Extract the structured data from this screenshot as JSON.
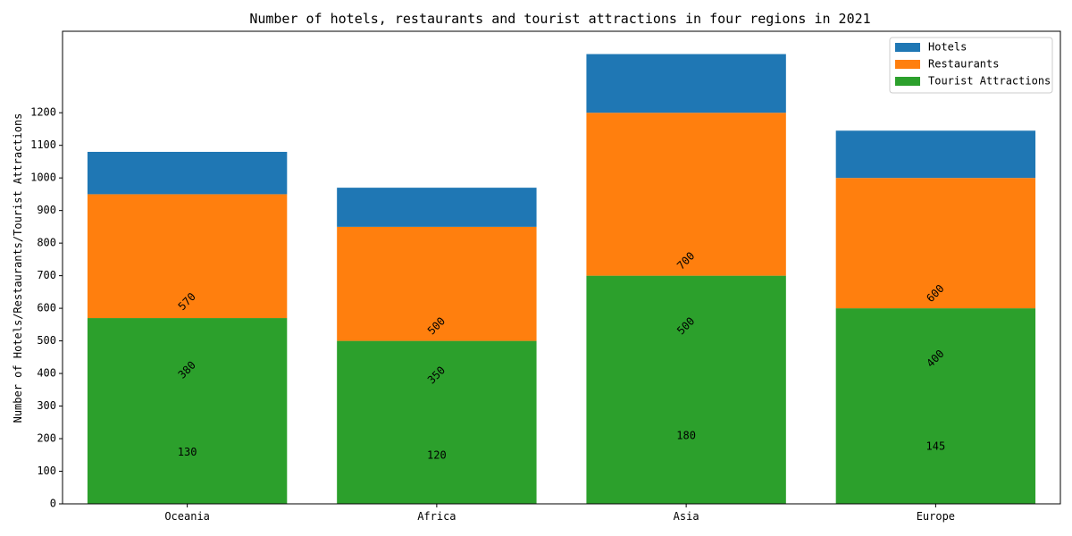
{
  "chart_data": {
    "type": "bar",
    "stacked": true,
    "title": "Number of hotels, restaurants and tourist attractions in four regions in 2021",
    "xlabel": "",
    "ylabel": "Number of Hotels/Restaurants/Tourist Attractions",
    "categories": [
      "Oceania",
      "Africa",
      "Asia",
      "Europe"
    ],
    "ylim": [
      0,
      1450
    ],
    "yticks": [
      0,
      100,
      200,
      300,
      400,
      500,
      600,
      700,
      800,
      900,
      1000,
      1100,
      1200
    ],
    "ytick_labels": [
      "0",
      "100",
      "200",
      "300",
      "400",
      "500",
      "600",
      "700",
      "800",
      "900",
      "1000",
      "1100",
      "1200"
    ],
    "legend_position": "top-right",
    "series": [
      {
        "name": "Tourist Attractions",
        "color": "#2ca02c",
        "values": [
          570,
          500,
          700,
          600
        ]
      },
      {
        "name": "Restaurants",
        "color": "#ff7f0e",
        "values": [
          380,
          350,
          500,
          400
        ]
      },
      {
        "name": "Hotels",
        "color": "#1f77b4",
        "values": [
          130,
          120,
          180,
          145
        ]
      }
    ],
    "legend_order": [
      "Hotels",
      "Restaurants",
      "Tourist Attractions"
    ],
    "annotations": [
      {
        "text": "130",
        "category": "Oceania",
        "y": 158,
        "rotation": 0
      },
      {
        "text": "380",
        "category": "Oceania",
        "y": 410,
        "rotation": -45
      },
      {
        "text": "570",
        "category": "Oceania",
        "y": 620,
        "rotation": -45
      },
      {
        "text": "120",
        "category": "Africa",
        "y": 148,
        "rotation": 0
      },
      {
        "text": "350",
        "category": "Africa",
        "y": 394,
        "rotation": -45
      },
      {
        "text": "500",
        "category": "Africa",
        "y": 545,
        "rotation": -45
      },
      {
        "text": "180",
        "category": "Asia",
        "y": 208,
        "rotation": 0
      },
      {
        "text": "500",
        "category": "Asia",
        "y": 545,
        "rotation": -45
      },
      {
        "text": "700",
        "category": "Asia",
        "y": 745,
        "rotation": -45
      },
      {
        "text": "145",
        "category": "Europe",
        "y": 175,
        "rotation": 0
      },
      {
        "text": "400",
        "category": "Europe",
        "y": 445,
        "rotation": -45
      },
      {
        "text": "600",
        "category": "Europe",
        "y": 645,
        "rotation": -45
      }
    ]
  }
}
